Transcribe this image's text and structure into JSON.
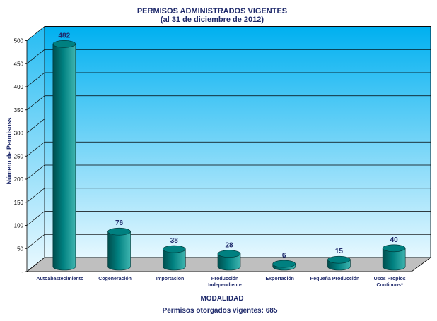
{
  "chart_data": {
    "type": "bar",
    "title": "PERMISOS ADMINISTRADOS VIGENTES",
    "subtitle": "(al 31 de diciembre de 2012)",
    "xlabel": "MODALIDAD",
    "ylabel": "Número de Permisoss",
    "categories": [
      [
        "Autoabastecimiento"
      ],
      [
        "Cogeneración"
      ],
      [
        "Importación"
      ],
      [
        "Producción",
        "Independiente"
      ],
      [
        "Exportación"
      ],
      [
        "Pequeña Producción"
      ],
      [
        "Usos Propios",
        "Continuos*"
      ]
    ],
    "values": [
      482,
      76,
      38,
      28,
      6,
      15,
      40
    ],
    "ylim": [
      0,
      500
    ],
    "yticks": [
      "-",
      "50",
      "100",
      "150",
      "200",
      "250",
      "300",
      "350",
      "400",
      "450",
      "500"
    ],
    "grid": true,
    "footer": "Permisos otorgados vigentes: 685",
    "colors": {
      "wall_top": "#00b0f0",
      "wall_bottom": "#e6f8ff",
      "floor": "#bfbfbf",
      "bar": "#008080",
      "bar_dark": "#004d4d",
      "bar_light": "#3fb5b0",
      "text": "#1f2a6b"
    }
  }
}
